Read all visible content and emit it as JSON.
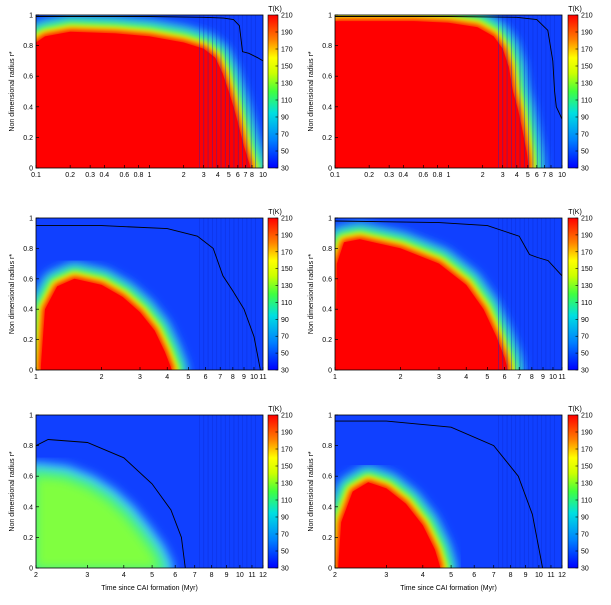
{
  "chart_data": [
    {
      "type": "heatmap",
      "panel": "top-left",
      "xlabel": "",
      "ylabel": "Non dimensional radius r*",
      "x_scale": "log",
      "xlim": [
        0.1,
        10
      ],
      "ylim": [
        0,
        1
      ],
      "x_ticks": [
        "0.1",
        "0.2",
        "0.3",
        "0.4",
        "0.6",
        "0.8",
        "1",
        "2",
        "3",
        "4",
        "5",
        "6",
        "7",
        "8",
        "10"
      ],
      "x_tick_values": [
        0.1,
        0.2,
        0.3,
        0.4,
        0.6,
        0.8,
        1,
        2,
        3,
        4,
        5,
        6,
        7,
        8,
        10
      ],
      "y_ticks": [
        "0",
        "0.2",
        "0.4",
        "0.6",
        "0.8",
        "1"
      ],
      "colorbar": {
        "label": "T(K)",
        "ticks": [
          "30",
          "50",
          "70",
          "90",
          "110",
          "130",
          "150",
          "170",
          "190",
          "210"
        ],
        "range": [
          30,
          210
        ]
      },
      "hot_boundary": [
        [
          0.1,
          0.82
        ],
        [
          0.12,
          0.86
        ],
        [
          0.2,
          0.89
        ],
        [
          0.5,
          0.88
        ],
        [
          1,
          0.86
        ],
        [
          2,
          0.82
        ],
        [
          3,
          0.78
        ],
        [
          3.8,
          0.72
        ],
        [
          4.4,
          0.62
        ],
        [
          5,
          0.5
        ],
        [
          5.6,
          0.38
        ],
        [
          6.2,
          0.26
        ],
        [
          6.8,
          0.14
        ],
        [
          7.5,
          0.04
        ],
        [
          7.8,
          0
        ]
      ],
      "contour": [
        [
          0.1,
          0.99
        ],
        [
          1,
          0.99
        ],
        [
          3,
          0.985
        ],
        [
          4.5,
          0.98
        ],
        [
          5.5,
          0.97
        ],
        [
          6.2,
          0.93
        ],
        [
          6.5,
          0.8
        ],
        [
          6.6,
          0.76
        ],
        [
          7.5,
          0.75
        ],
        [
          9,
          0.72
        ],
        [
          10,
          0.7
        ]
      ]
    },
    {
      "type": "heatmap",
      "panel": "top-right",
      "xlabel": "",
      "ylabel": "Non dimensional radius r*",
      "x_scale": "log",
      "xlim": [
        0.1,
        10
      ],
      "ylim": [
        0,
        1
      ],
      "x_ticks": [
        "0.1",
        "0.2",
        "0.3",
        "0.4",
        "0.6",
        "0.8",
        "1",
        "2",
        "3",
        "4",
        "5",
        "6",
        "7",
        "8",
        "10"
      ],
      "x_tick_values": [
        0.1,
        0.2,
        0.3,
        0.4,
        0.6,
        0.8,
        1,
        2,
        3,
        4,
        5,
        6,
        7,
        8,
        10
      ],
      "y_ticks": [
        "0",
        "0.2",
        "0.4",
        "0.6",
        "0.8",
        "1"
      ],
      "colorbar": {
        "label": "T(K)",
        "ticks": [
          "30",
          "50",
          "70",
          "90",
          "110",
          "130",
          "150",
          "170",
          "190",
          "210"
        ],
        "range": [
          30,
          210
        ]
      },
      "hot_boundary": [
        [
          0.1,
          0.96
        ],
        [
          0.5,
          0.96
        ],
        [
          1,
          0.95
        ],
        [
          1.8,
          0.92
        ],
        [
          2.5,
          0.86
        ],
        [
          3,
          0.78
        ],
        [
          3.4,
          0.66
        ],
        [
          3.7,
          0.5
        ],
        [
          4.1,
          0.38
        ],
        [
          4.5,
          0.24
        ],
        [
          4.9,
          0.1
        ],
        [
          5.1,
          0
        ]
      ],
      "contour": [
        [
          0.1,
          0.99
        ],
        [
          1,
          0.99
        ],
        [
          4,
          0.985
        ],
        [
          6,
          0.97
        ],
        [
          7.5,
          0.9
        ],
        [
          8.3,
          0.7
        ],
        [
          8.6,
          0.5
        ],
        [
          8.9,
          0.4
        ],
        [
          10,
          0.32
        ]
      ]
    },
    {
      "type": "heatmap",
      "panel": "middle-left",
      "xlabel": "",
      "ylabel": "Non dimensional radius r*",
      "x_scale": "log",
      "xlim": [
        1,
        11
      ],
      "ylim": [
        0,
        1
      ],
      "x_ticks": [
        "1",
        "2",
        "3",
        "4",
        "5",
        "6",
        "7",
        "8",
        "9",
        "10",
        "11"
      ],
      "x_tick_values": [
        1,
        2,
        3,
        4,
        5,
        6,
        7,
        8,
        9,
        10,
        11
      ],
      "y_ticks": [
        "0",
        "0.2",
        "0.4",
        "0.6",
        "0.8",
        "1"
      ],
      "colorbar": {
        "label": "T(K)",
        "ticks": [
          "30",
          "50",
          "70",
          "90",
          "110",
          "130",
          "150",
          "170",
          "190",
          "210"
        ],
        "range": [
          30,
          210
        ]
      },
      "hot_boundary": [
        [
          1.05,
          0
        ],
        [
          1.1,
          0.4
        ],
        [
          1.25,
          0.55
        ],
        [
          1.5,
          0.6
        ],
        [
          2,
          0.56
        ],
        [
          2.5,
          0.48
        ],
        [
          3,
          0.38
        ],
        [
          3.5,
          0.26
        ],
        [
          3.9,
          0.12
        ],
        [
          4.2,
          0
        ]
      ],
      "contour": [
        [
          1,
          0.95
        ],
        [
          2,
          0.95
        ],
        [
          4,
          0.93
        ],
        [
          5.5,
          0.88
        ],
        [
          6.5,
          0.8
        ],
        [
          7.2,
          0.62
        ],
        [
          8,
          0.52
        ],
        [
          9,
          0.4
        ],
        [
          10,
          0.22
        ],
        [
          10.7,
          0
        ]
      ]
    },
    {
      "type": "heatmap",
      "panel": "middle-right",
      "xlabel": "",
      "ylabel": "Non dimensional radius r*",
      "x_scale": "log",
      "xlim": [
        1,
        11
      ],
      "ylim": [
        0,
        1
      ],
      "x_ticks": [
        "1",
        "2",
        "3",
        "4",
        "5",
        "6",
        "7",
        "8",
        "9",
        "10",
        "11"
      ],
      "x_tick_values": [
        1,
        2,
        3,
        4,
        5,
        6,
        7,
        8,
        9,
        10,
        11
      ],
      "y_ticks": [
        "0",
        "0.2",
        "0.4",
        "0.6",
        "0.8",
        "1"
      ],
      "colorbar": {
        "label": "T(K)",
        "ticks": [
          "30",
          "50",
          "70",
          "90",
          "110",
          "130",
          "150",
          "170",
          "190",
          "210"
        ],
        "range": [
          30,
          210
        ]
      },
      "hot_boundary": [
        [
          1.02,
          0.7
        ],
        [
          1.1,
          0.84
        ],
        [
          1.3,
          0.86
        ],
        [
          2,
          0.8
        ],
        [
          3,
          0.7
        ],
        [
          4,
          0.56
        ],
        [
          4.8,
          0.4
        ],
        [
          5.5,
          0.22
        ],
        [
          6,
          0.08
        ],
        [
          6.2,
          0
        ]
      ],
      "contour": [
        [
          1,
          0.98
        ],
        [
          3,
          0.97
        ],
        [
          5,
          0.95
        ],
        [
          7,
          0.88
        ],
        [
          7.8,
          0.76
        ],
        [
          8.5,
          0.74
        ],
        [
          9.5,
          0.72
        ],
        [
          11,
          0.62
        ]
      ]
    },
    {
      "type": "heatmap",
      "panel": "bottom-left",
      "xlabel": "",
      "ylabel": "Non dimensional radius r*",
      "x_scale": "log",
      "xlim": [
        2,
        12
      ],
      "ylim": [
        0,
        1
      ],
      "x_ticks": [
        "2",
        "3",
        "4",
        "5",
        "6",
        "7",
        "8",
        "9",
        "10",
        "11",
        "12"
      ],
      "x_tick_values": [
        2,
        3,
        4,
        5,
        6,
        7,
        8,
        9,
        10,
        11,
        12
      ],
      "y_ticks": [
        "0",
        "0.2",
        "0.4",
        "0.6",
        "0.8",
        "1"
      ],
      "colorbar": {
        "label": "T(K)",
        "ticks": [
          "30",
          "50",
          "70",
          "90",
          "110",
          "130",
          "150",
          "170",
          "190",
          "210"
        ],
        "range": [
          30,
          210
        ]
      },
      "hot_boundary": [],
      "warm_boundary": [
        [
          2,
          0.6
        ],
        [
          2.5,
          0.58
        ],
        [
          3,
          0.52
        ],
        [
          3.5,
          0.44
        ],
        [
          4,
          0.34
        ],
        [
          4.5,
          0.22
        ],
        [
          5,
          0.1
        ],
        [
          5.3,
          0
        ]
      ],
      "contour": [
        [
          2,
          0.8
        ],
        [
          2.2,
          0.84
        ],
        [
          3,
          0.82
        ],
        [
          4,
          0.72
        ],
        [
          5,
          0.55
        ],
        [
          5.8,
          0.38
        ],
        [
          6.3,
          0.2
        ],
        [
          6.5,
          0
        ]
      ]
    },
    {
      "type": "heatmap",
      "panel": "bottom-right",
      "xlabel": "Time since CAI formation (Myr)",
      "ylabel": "Non dimensional radius r*",
      "x_scale": "log",
      "xlim": [
        2,
        12
      ],
      "ylim": [
        0,
        1
      ],
      "x_ticks": [
        "2",
        "3",
        "4",
        "5",
        "6",
        "7",
        "8",
        "9",
        "10",
        "11",
        "12"
      ],
      "x_tick_values": [
        2,
        3,
        4,
        5,
        6,
        7,
        8,
        9,
        10,
        11,
        12
      ],
      "y_ticks": [
        "0",
        "0.2",
        "0.4",
        "0.6",
        "0.8",
        "1"
      ],
      "colorbar": {
        "label": "T(K)",
        "ticks": [
          "30",
          "50",
          "70",
          "90",
          "110",
          "130",
          "150",
          "170",
          "190",
          "210"
        ],
        "range": [
          30,
          210
        ]
      },
      "hot_boundary": [
        [
          2.05,
          0
        ],
        [
          2.1,
          0.3
        ],
        [
          2.3,
          0.5
        ],
        [
          2.6,
          0.56
        ],
        [
          3,
          0.52
        ],
        [
          3.5,
          0.42
        ],
        [
          4,
          0.28
        ],
        [
          4.4,
          0.12
        ],
        [
          4.6,
          0
        ]
      ],
      "contour": [
        [
          2,
          0.96
        ],
        [
          3,
          0.96
        ],
        [
          5,
          0.92
        ],
        [
          7,
          0.8
        ],
        [
          8.5,
          0.6
        ],
        [
          9.5,
          0.35
        ],
        [
          10.3,
          0
        ]
      ]
    }
  ],
  "shared_xlabel": "Time since CAI formation (Myr)"
}
